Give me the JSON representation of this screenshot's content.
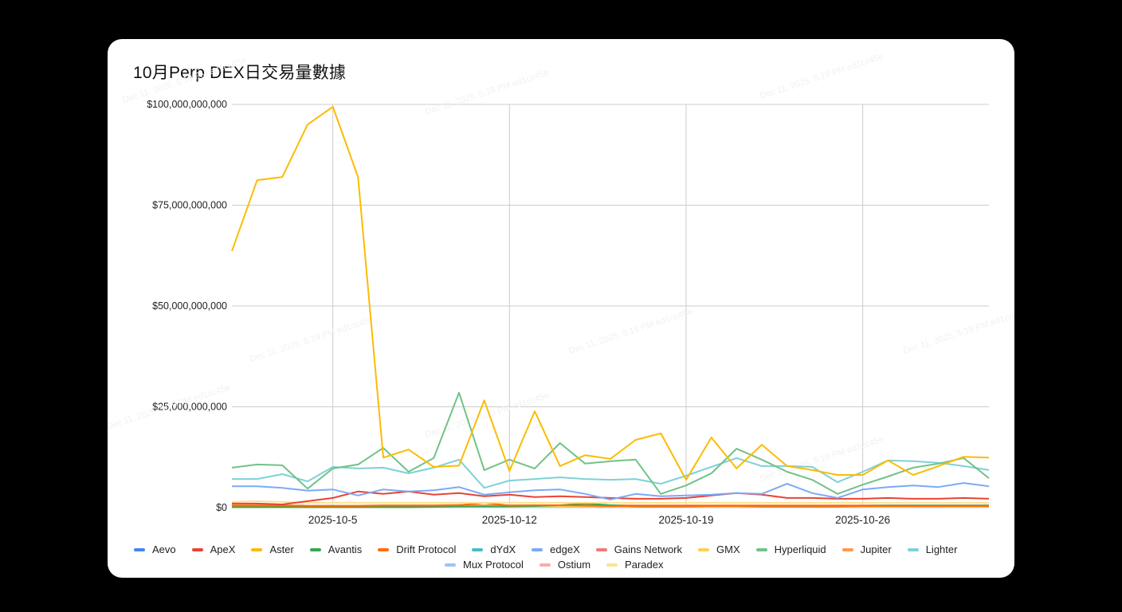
{
  "title": "10月Perp DEX日交易量數據",
  "chart_data": {
    "type": "line",
    "title": "10月Perp DEX日交易量數據",
    "xlabel": "",
    "ylabel": "",
    "ylim": [
      0,
      100000000000
    ],
    "yticks": [
      "$0",
      "$25,000,000,000",
      "$50,000,000,000",
      "$75,000,000,000",
      "$100,000,000,000"
    ],
    "xticks": [
      "2025-10-5",
      "2025-10-12",
      "2025-10-19",
      "2025-10-26"
    ],
    "grid": true,
    "legend_position": "bottom",
    "x": [
      "2025-10-1",
      "2025-10-2",
      "2025-10-3",
      "2025-10-4",
      "2025-10-5",
      "2025-10-6",
      "2025-10-7",
      "2025-10-8",
      "2025-10-9",
      "2025-10-10",
      "2025-10-11",
      "2025-10-12",
      "2025-10-13",
      "2025-10-14",
      "2025-10-15",
      "2025-10-16",
      "2025-10-17",
      "2025-10-18",
      "2025-10-19",
      "2025-10-20",
      "2025-10-21",
      "2025-10-22",
      "2025-10-23",
      "2025-10-24",
      "2025-10-25",
      "2025-10-26",
      "2025-10-27",
      "2025-10-28",
      "2025-10-29",
      "2025-10-30",
      "2025-10-31"
    ],
    "unit": "USD billions",
    "series": [
      {
        "name": "Aevo",
        "color": "#4285f4",
        "values": [
          0.2,
          0.2,
          0.2,
          0.2,
          0.2,
          0.2,
          0.2,
          0.2,
          0.2,
          0.2,
          0.2,
          0.2,
          0.2,
          0.2,
          0.2,
          0.2,
          0.2,
          0.2,
          0.2,
          0.2,
          0.2,
          0.2,
          0.2,
          0.2,
          0.2,
          0.2,
          0.2,
          0.2,
          0.2,
          0.2,
          0.2
        ]
      },
      {
        "name": "ApeX",
        "color": "#ea4335",
        "values": [
          1.0,
          1.0,
          0.8,
          1.6,
          2.4,
          4.0,
          3.4,
          4.0,
          3.2,
          3.6,
          2.8,
          3.2,
          2.6,
          2.8,
          2.6,
          2.4,
          2.2,
          2.2,
          2.4,
          3.0,
          3.6,
          3.2,
          2.4,
          2.4,
          2.2,
          2.2,
          2.4,
          2.2,
          2.2,
          2.4,
          2.2
        ]
      },
      {
        "name": "Aster",
        "color": "#fbbc04",
        "values": [
          63.6,
          81.2,
          82.0,
          95.0,
          99.4,
          82.0,
          12.4,
          14.4,
          10.1,
          10.4,
          26.6,
          9.1,
          23.9,
          10.3,
          13.0,
          12.1,
          16.8,
          18.4,
          6.9,
          17.4,
          9.7,
          15.6,
          10.3,
          9.3,
          8.1,
          8.1,
          11.7,
          8.1,
          10.3,
          12.6,
          12.4
        ]
      },
      {
        "name": "Avantis",
        "color": "#34a853",
        "values": [
          0.1,
          0.1,
          0.1,
          0.1,
          0.1,
          0.1,
          0.1,
          0.1,
          0.2,
          0.3,
          0.3,
          0.3,
          0.4,
          0.6,
          1.0,
          0.6,
          0.3,
          0.3,
          0.3,
          0.4,
          0.4,
          0.3,
          0.3,
          0.3,
          0.3,
          0.4,
          0.5,
          0.5,
          0.5,
          0.5,
          0.5
        ]
      },
      {
        "name": "Drift Protocol",
        "color": "#ff6d01",
        "values": [
          0.5,
          0.5,
          0.5,
          0.4,
          0.4,
          0.4,
          0.5,
          0.5,
          0.5,
          0.6,
          1.2,
          0.5,
          0.6,
          0.6,
          0.5,
          0.4,
          0.4,
          0.4,
          0.4,
          0.4,
          0.4,
          0.4,
          0.4,
          0.4,
          0.4,
          0.4,
          0.4,
          0.4,
          0.4,
          0.4,
          0.4
        ]
      },
      {
        "name": "dYdX",
        "color": "#46bdc6",
        "values": [
          0.3,
          0.3,
          0.3,
          0.3,
          0.3,
          0.3,
          0.3,
          0.3,
          0.3,
          0.3,
          0.3,
          0.3,
          0.3,
          0.3,
          0.3,
          0.3,
          0.3,
          0.3,
          0.3,
          0.3,
          0.3,
          0.3,
          0.3,
          0.3,
          0.3,
          0.3,
          0.3,
          0.3,
          0.3,
          0.3,
          0.3
        ]
      },
      {
        "name": "edgeX",
        "color": "#7baaf7",
        "values": [
          5.3,
          5.3,
          4.9,
          4.2,
          4.5,
          3.0,
          4.5,
          4.0,
          4.3,
          5.1,
          3.2,
          3.8,
          4.3,
          4.5,
          3.4,
          2.0,
          3.4,
          2.8,
          3.0,
          3.2,
          3.6,
          3.4,
          5.9,
          3.6,
          2.4,
          4.5,
          5.1,
          5.5,
          5.1,
          6.1,
          5.3
        ]
      },
      {
        "name": "Gains Network",
        "color": "#f07b72",
        "values": [
          0.2,
          0.2,
          0.2,
          0.2,
          0.2,
          0.2,
          0.2,
          0.2,
          0.2,
          0.2,
          0.2,
          0.2,
          0.2,
          0.2,
          0.2,
          0.2,
          0.2,
          0.2,
          0.2,
          0.2,
          0.2,
          0.2,
          0.2,
          0.2,
          0.2,
          0.2,
          0.2,
          0.2,
          0.2,
          0.2,
          0.2
        ]
      },
      {
        "name": "GMX",
        "color": "#fcd04f",
        "values": [
          0.3,
          0.3,
          0.3,
          0.3,
          0.3,
          0.3,
          0.3,
          0.3,
          0.3,
          0.3,
          0.3,
          0.3,
          0.3,
          0.3,
          0.3,
          0.3,
          0.3,
          0.3,
          0.3,
          0.3,
          0.3,
          0.3,
          0.3,
          0.3,
          0.3,
          0.3,
          0.3,
          0.3,
          0.3,
          0.3,
          0.3
        ]
      },
      {
        "name": "Hyperliquid",
        "color": "#71c287",
        "values": [
          9.9,
          10.7,
          10.5,
          4.7,
          9.7,
          10.7,
          14.8,
          8.9,
          12.3,
          28.5,
          9.3,
          11.9,
          9.7,
          16.0,
          10.9,
          11.5,
          11.9,
          3.4,
          5.5,
          8.5,
          14.6,
          11.9,
          8.9,
          6.9,
          3.4,
          5.7,
          7.7,
          9.9,
          10.9,
          12.3,
          7.3
        ]
      },
      {
        "name": "Jupiter",
        "color": "#ff994d",
        "values": [
          0.6,
          0.6,
          0.6,
          0.5,
          0.5,
          0.5,
          0.6,
          0.6,
          0.6,
          0.7,
          0.6,
          0.6,
          0.6,
          0.6,
          0.6,
          0.6,
          0.6,
          0.6,
          0.6,
          0.6,
          0.6,
          0.6,
          0.6,
          0.6,
          0.6,
          0.6,
          0.6,
          0.6,
          0.6,
          0.6,
          0.6
        ]
      },
      {
        "name": "Lighter",
        "color": "#7ed1d7",
        "values": [
          7.1,
          7.1,
          8.3,
          6.5,
          10.1,
          9.7,
          9.9,
          8.5,
          9.9,
          11.9,
          4.9,
          6.7,
          7.1,
          7.5,
          7.1,
          6.9,
          7.1,
          5.9,
          7.9,
          10.1,
          12.3,
          10.3,
          10.3,
          10.1,
          6.3,
          8.9,
          11.7,
          11.5,
          11.1,
          10.3,
          9.3
        ]
      },
      {
        "name": "Mux Protocol",
        "color": "#a1c2fa",
        "values": [
          0.1,
          0.1,
          0.1,
          0.1,
          0.1,
          0.1,
          0.1,
          0.1,
          0.1,
          0.1,
          0.1,
          0.1,
          0.1,
          0.1,
          0.1,
          0.1,
          0.1,
          0.1,
          0.1,
          0.1,
          0.1,
          0.1,
          0.1,
          0.1,
          0.1,
          0.1,
          0.1,
          0.1,
          0.1,
          0.1,
          0.1
        ]
      },
      {
        "name": "Ostium",
        "color": "#f6aea9",
        "values": [
          0.2,
          0.2,
          0.2,
          0.2,
          0.2,
          0.2,
          0.2,
          0.2,
          0.2,
          0.2,
          0.2,
          0.2,
          0.2,
          0.2,
          0.2,
          0.2,
          0.2,
          0.2,
          0.2,
          0.2,
          0.2,
          0.2,
          0.2,
          0.2,
          0.2,
          0.2,
          0.2,
          0.2,
          0.2,
          0.2,
          0.2
        ]
      },
      {
        "name": "Paradex",
        "color": "#fde293",
        "values": [
          1.4,
          1.6,
          1.4,
          1.2,
          1.2,
          1.2,
          1.2,
          1.2,
          1.2,
          1.2,
          1.2,
          1.2,
          1.2,
          1.2,
          1.2,
          1.2,
          1.2,
          1.2,
          1.2,
          1.2,
          1.2,
          1.2,
          1.2,
          1.2,
          1.2,
          1.2,
          1.2,
          1.2,
          1.2,
          1.2,
          1.2
        ]
      }
    ]
  },
  "legend": {
    "row1": [
      "Aevo",
      "ApeX",
      "Aster",
      "Avantis",
      "Drift Protocol",
      "dYdX",
      "edgeX",
      "Gains Network",
      "GMX",
      "Hyperliquid",
      "Jupiter",
      "Lighter"
    ],
    "row2": [
      "Mux Protocol",
      "Ostium",
      "Paradex"
    ]
  },
  "watermark": "Dec 11, 2025, 5:19 PM ed1cc45e"
}
